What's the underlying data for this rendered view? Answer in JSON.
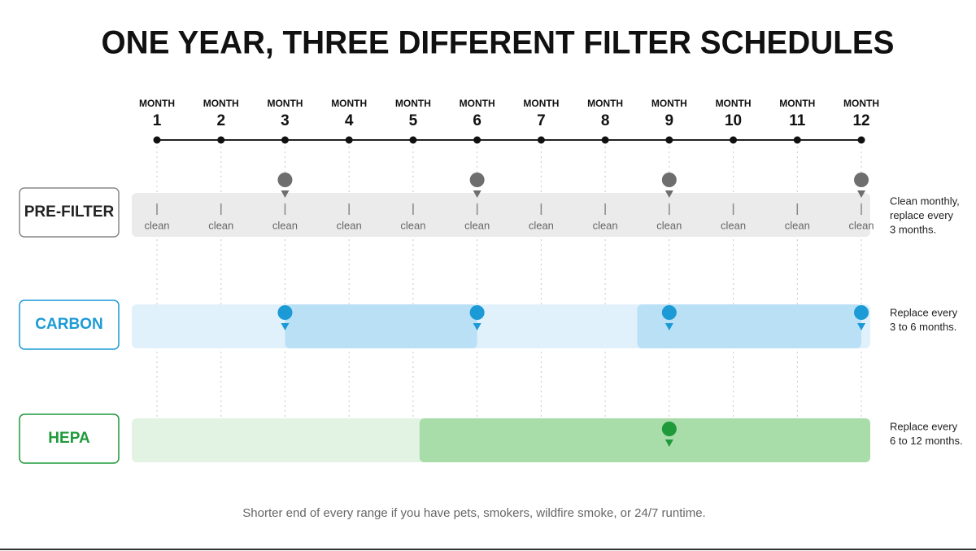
{
  "title": "ONE YEAR, THREE DIFFERENT FILTER SCHEDULES",
  "months": [
    {
      "label": "MONTH",
      "number": 1
    },
    {
      "label": "MONTH",
      "number": 2
    },
    {
      "label": "MONTH",
      "number": 3
    },
    {
      "label": "MONTH",
      "number": 4
    },
    {
      "label": "MONTH",
      "number": 5
    },
    {
      "label": "MONTH",
      "number": 6
    },
    {
      "label": "MONTH",
      "number": 7
    },
    {
      "label": "MONTH",
      "number": 8
    },
    {
      "label": "MONTH",
      "number": 9
    },
    {
      "label": "MONTH",
      "number": 10
    },
    {
      "label": "MONTH",
      "number": 11
    },
    {
      "label": "MONTH",
      "number": 12
    }
  ],
  "rows": [
    {
      "label": "PRE-FILTER",
      "color": "#222222",
      "marker_color": "#6e6e6e",
      "band_color": "#ebebeb",
      "highlight_color": "#ebebeb",
      "note": [
        "Clean monthly,",
        "replace every",
        "3 months."
      ],
      "clean_labels": [
        "clean",
        "clean",
        "clean",
        "clean",
        "clean",
        "clean",
        "clean",
        "clean",
        "clean",
        "clean",
        "clean",
        "clean"
      ],
      "replace_months": [
        3,
        6,
        9,
        12
      ],
      "highlight_ranges": []
    },
    {
      "label": "CARBON",
      "color": "#1c9ad6",
      "marker_color": "#1c9ad6",
      "band_color": "#e1f1fb",
      "highlight_color": "#b9e0f5",
      "note": [
        "Replace every",
        "3 to 6 months."
      ],
      "replace_months": [
        3,
        6,
        9,
        12
      ],
      "highlight_ranges": [
        [
          3,
          6
        ],
        [
          8.5,
          12
        ]
      ]
    },
    {
      "label": "HEPA",
      "color": "#1f9a3b",
      "marker_color": "#1f9a3b",
      "band_color": "#e3f3e3",
      "highlight_color": "#a8dca8",
      "note": [
        "Replace every",
        "6 to 12 months."
      ],
      "replace_months": [
        9
      ],
      "highlight_ranges": [
        [
          5.1,
          12.14
        ]
      ]
    }
  ],
  "footer": "Shorter end of every range if you have pets, smokers, wildfire smoke, or 24/7 runtime."
}
